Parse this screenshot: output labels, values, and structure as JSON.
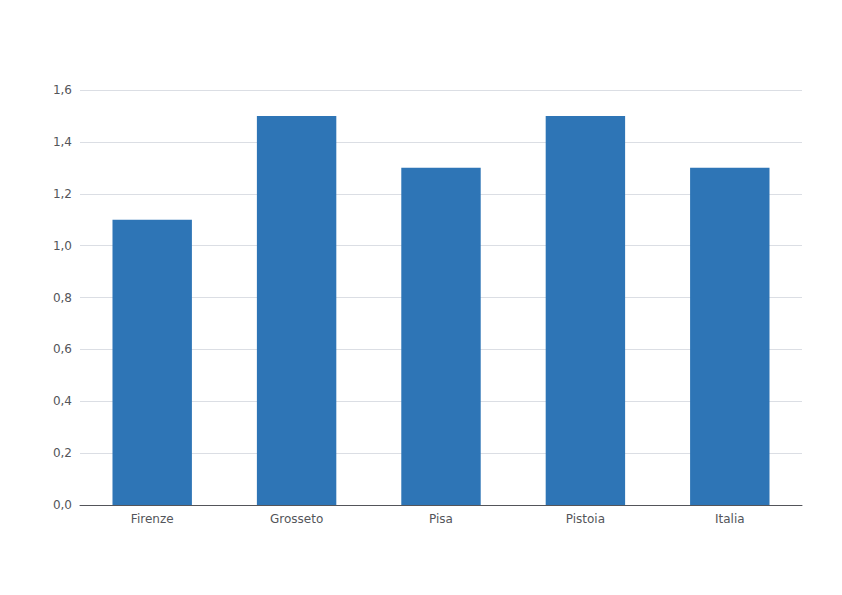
{
  "chart_data": {
    "type": "bar",
    "categories": [
      "Firenze",
      "Grosseto",
      "Pisa",
      "Pistoia",
      "Italia"
    ],
    "values": [
      1.1,
      1.5,
      1.3,
      1.5,
      1.3
    ],
    "color": "#2E75B6",
    "ylim": [
      0,
      1.6
    ],
    "yticks": [
      {
        "value": 0,
        "label": "0,0"
      },
      {
        "value": 0.2,
        "label": "0,2"
      },
      {
        "value": 0.4,
        "label": "0,4"
      },
      {
        "value": 0.6,
        "label": "0,6"
      },
      {
        "value": 0.8,
        "label": "0,8"
      },
      {
        "value": 1.0,
        "label": "1,0"
      },
      {
        "value": 1.2,
        "label": "1,2"
      },
      {
        "value": 1.4,
        "label": "1,4"
      },
      {
        "value": 1.6,
        "label": "1,6"
      }
    ],
    "grid": true
  }
}
